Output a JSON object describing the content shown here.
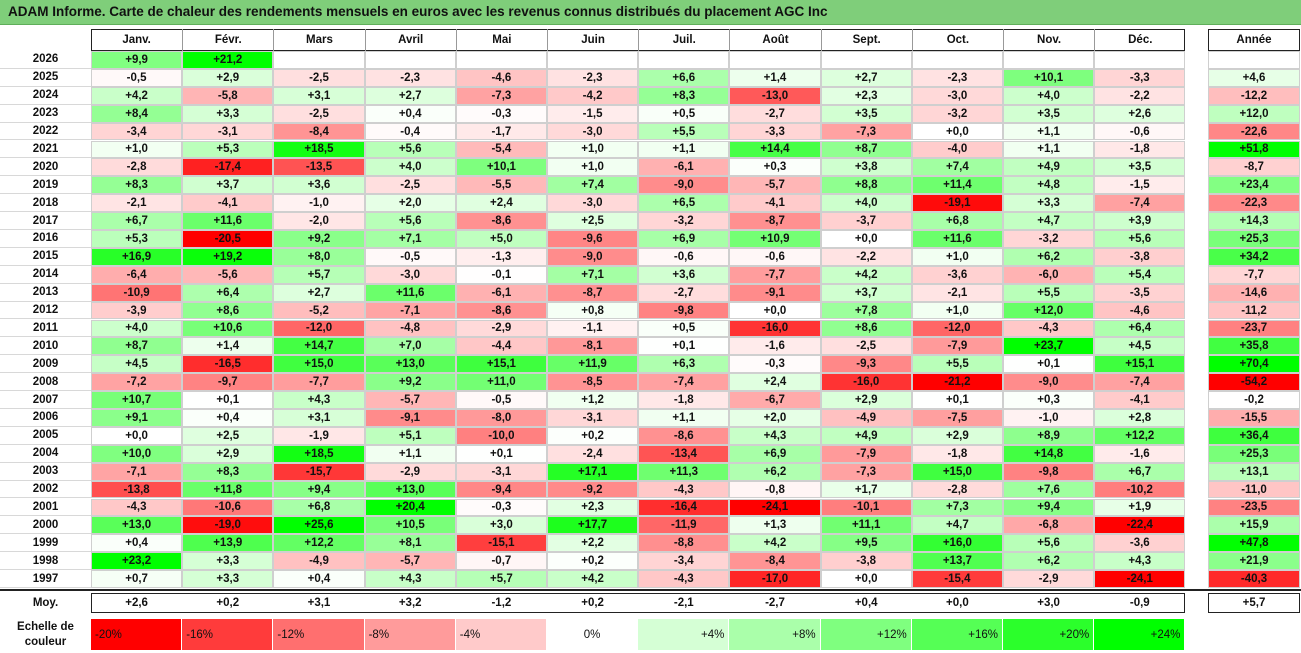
{
  "title": "ADAM Informe. Carte de chaleur des rendements mensuels en euros avec les revenus connus distribués du placement AGC Inc",
  "chart_data": {
    "type": "heatmap",
    "title": "ADAM Informe. Carte de chaleur des rendements mensuels en euros avec les revenus connus distribués du placement AGC Inc",
    "columns": [
      "Janv.",
      "Févr.",
      "Mars",
      "Avril",
      "Mai",
      "Juin",
      "Juil.",
      "Août",
      "Sept.",
      "Oct.",
      "Nov.",
      "Déc."
    ],
    "year_column_label": "Année",
    "rows": [
      {
        "year": "2026",
        "months": [
          "+9,9",
          "+21,2",
          "",
          "",
          "",
          "",
          "",
          "",
          "",
          "",
          "",
          ""
        ],
        "annual": ""
      },
      {
        "year": "2025",
        "months": [
          "-0,5",
          "+2,9",
          "-2,5",
          "-2,3",
          "-4,6",
          "-2,3",
          "+6,6",
          "+1,4",
          "+2,7",
          "-2,3",
          "+10,1",
          "-3,3"
        ],
        "annual": "+4,6"
      },
      {
        "year": "2024",
        "months": [
          "+4,2",
          "-5,8",
          "+3,1",
          "+2,7",
          "-7,3",
          "-4,2",
          "+8,3",
          "-13,0",
          "+2,3",
          "-3,0",
          "+4,0",
          "-2,2"
        ],
        "annual": "-12,2"
      },
      {
        "year": "2023",
        "months": [
          "+8,4",
          "+3,3",
          "-2,5",
          "+0,4",
          "-0,3",
          "-1,5",
          "+0,5",
          "-2,7",
          "+3,5",
          "-3,2",
          "+3,5",
          "+2,6"
        ],
        "annual": "+12,0"
      },
      {
        "year": "2022",
        "months": [
          "-3,4",
          "-3,1",
          "-8,4",
          "-0,4",
          "-1,7",
          "-3,0",
          "+5,5",
          "-3,3",
          "-7,3",
          "+0,0",
          "+1,1",
          "-0,6"
        ],
        "annual": "-22,6"
      },
      {
        "year": "2021",
        "months": [
          "+1,0",
          "+5,3",
          "+18,5",
          "+5,6",
          "-5,4",
          "+1,0",
          "+1,1",
          "+14,4",
          "+8,7",
          "-4,0",
          "+1,1",
          "-1,8"
        ],
        "annual": "+51,8"
      },
      {
        "year": "2020",
        "months": [
          "-2,8",
          "-17,4",
          "-13,5",
          "+4,0",
          "+10,1",
          "+1,0",
          "-6,1",
          "+0,3",
          "+3,8",
          "+7,4",
          "+4,9",
          "+3,5"
        ],
        "annual": "-8,7"
      },
      {
        "year": "2019",
        "months": [
          "+8,3",
          "+3,7",
          "+3,6",
          "-2,5",
          "-5,5",
          "+7,4",
          "-9,0",
          "-5,7",
          "+8,8",
          "+11,4",
          "+4,8",
          "-1,5"
        ],
        "annual": "+23,4"
      },
      {
        "year": "2018",
        "months": [
          "-2,1",
          "-4,1",
          "-1,0",
          "+2,0",
          "+2,4",
          "-3,0",
          "+6,5",
          "-4,1",
          "+4,0",
          "-19,1",
          "+3,3",
          "-7,4"
        ],
        "annual": "-22,3"
      },
      {
        "year": "2017",
        "months": [
          "+6,7",
          "+11,6",
          "-2,0",
          "+5,6",
          "-8,6",
          "+2,5",
          "-3,2",
          "-8,7",
          "-3,7",
          "+6,8",
          "+4,7",
          "+3,9"
        ],
        "annual": "+14,3"
      },
      {
        "year": "2016",
        "months": [
          "+5,3",
          "-20,5",
          "+9,2",
          "+7,1",
          "+5,0",
          "-9,6",
          "+6,9",
          "+10,9",
          "+0,0",
          "+11,6",
          "-3,2",
          "+5,6"
        ],
        "annual": "+25,3"
      },
      {
        "year": "2015",
        "months": [
          "+16,9",
          "+19,2",
          "+8,0",
          "-0,5",
          "-1,3",
          "-9,0",
          "-0,6",
          "-0,6",
          "-2,2",
          "+1,0",
          "+6,2",
          "-3,8"
        ],
        "annual": "+34,2"
      },
      {
        "year": "2014",
        "months": [
          "-6,4",
          "-5,6",
          "+5,7",
          "-3,0",
          "-0,1",
          "+7,1",
          "+3,6",
          "-7,7",
          "+4,2",
          "-3,6",
          "-6,0",
          "+5,4"
        ],
        "annual": "-7,7"
      },
      {
        "year": "2013",
        "months": [
          "-10,9",
          "+6,4",
          "+2,7",
          "+11,6",
          "-6,1",
          "-8,7",
          "-2,7",
          "-9,1",
          "+3,7",
          "-2,1",
          "+5,5",
          "-3,5"
        ],
        "annual": "-14,6"
      },
      {
        "year": "2012",
        "months": [
          "-3,9",
          "+8,6",
          "-5,2",
          "-7,1",
          "-8,6",
          "+0,8",
          "-9,8",
          "+0,0",
          "+7,8",
          "+1,0",
          "+12,0",
          "-4,6"
        ],
        "annual": "-11,2"
      },
      {
        "year": "2011",
        "months": [
          "+4,0",
          "+10,6",
          "-12,0",
          "-4,8",
          "-2,9",
          "-1,1",
          "+0,5",
          "-16,0",
          "+8,6",
          "-12,0",
          "-4,3",
          "+6,4"
        ],
        "annual": "-23,7"
      },
      {
        "year": "2010",
        "months": [
          "+8,7",
          "+1,4",
          "+14,7",
          "+7,0",
          "-4,4",
          "-8,1",
          "+0,1",
          "-1,6",
          "-2,5",
          "-7,9",
          "+23,7",
          "+4,5"
        ],
        "annual": "+35,8"
      },
      {
        "year": "2009",
        "months": [
          "+4,5",
          "-16,5",
          "+15,0",
          "+13,0",
          "+15,1",
          "+11,9",
          "+6,3",
          "-0,3",
          "-9,3",
          "+5,5",
          "+0,1",
          "+15,1"
        ],
        "annual": "+70,4"
      },
      {
        "year": "2008",
        "months": [
          "-7,2",
          "-9,7",
          "-7,7",
          "+9,2",
          "+11,0",
          "-8,5",
          "-7,4",
          "+2,4",
          "-16,0",
          "-21,2",
          "-9,0",
          "-7,4"
        ],
        "annual": "-54,2"
      },
      {
        "year": "2007",
        "months": [
          "+10,7",
          "+0,1",
          "+4,3",
          "-5,7",
          "-0,5",
          "+1,2",
          "-1,8",
          "-6,7",
          "+2,9",
          "+0,1",
          "+0,3",
          "-4,1"
        ],
        "annual": "-0,2"
      },
      {
        "year": "2006",
        "months": [
          "+9,1",
          "+0,4",
          "+3,1",
          "-9,1",
          "-8,0",
          "-3,1",
          "+1,1",
          "+2,0",
          "-4,9",
          "-7,5",
          "-1,0",
          "+2,8"
        ],
        "annual": "-15,5"
      },
      {
        "year": "2005",
        "months": [
          "+0,0",
          "+2,5",
          "-1,9",
          "+5,1",
          "-10,0",
          "+0,2",
          "-8,6",
          "+4,3",
          "+4,9",
          "+2,9",
          "+8,9",
          "+12,2"
        ],
        "annual": "+36,4"
      },
      {
        "year": "2004",
        "months": [
          "+10,0",
          "+2,9",
          "+18,5",
          "+1,1",
          "+0,1",
          "-2,4",
          "-13,4",
          "+6,9",
          "-7,9",
          "-1,8",
          "+14,8",
          "-1,6"
        ],
        "annual": "+25,3"
      },
      {
        "year": "2003",
        "months": [
          "-7,1",
          "+8,3",
          "-15,7",
          "-2,9",
          "-3,1",
          "+17,1",
          "+11,3",
          "+6,2",
          "-7,3",
          "+15,0",
          "-9,8",
          "+6,7"
        ],
        "annual": "+13,1"
      },
      {
        "year": "2002",
        "months": [
          "-13,8",
          "+11,8",
          "+9,4",
          "+13,0",
          "-9,4",
          "-9,2",
          "-4,3",
          "-0,8",
          "+1,7",
          "-2,8",
          "+7,6",
          "-10,2"
        ],
        "annual": "-11,0"
      },
      {
        "year": "2001",
        "months": [
          "-4,3",
          "-10,6",
          "+6,8",
          "+20,4",
          "-0,3",
          "+2,3",
          "-16,4",
          "-24,1",
          "-10,1",
          "+7,3",
          "+9,4",
          "+1,9"
        ],
        "annual": "-23,5"
      },
      {
        "year": "2000",
        "months": [
          "+13,0",
          "-19,0",
          "+25,6",
          "+10,5",
          "+3,0",
          "+17,7",
          "-11,9",
          "+1,3",
          "+11,1",
          "+4,7",
          "-6,8",
          "-22,4"
        ],
        "annual": "+15,9"
      },
      {
        "year": "1999",
        "months": [
          "+0,4",
          "+13,9",
          "+12,2",
          "+8,1",
          "-15,1",
          "+2,2",
          "-8,8",
          "+4,2",
          "+9,5",
          "+16,0",
          "+5,6",
          "-3,6"
        ],
        "annual": "+47,8"
      },
      {
        "year": "1998",
        "months": [
          "+23,2",
          "+3,3",
          "-4,9",
          "-5,7",
          "-0,7",
          "+0,2",
          "-3,4",
          "-8,4",
          "-3,8",
          "+13,7",
          "+6,2",
          "+4,3"
        ],
        "annual": "+21,9"
      },
      {
        "year": "1997",
        "months": [
          "+0,7",
          "+3,3",
          "+0,4",
          "+4,3",
          "+5,7",
          "+4,2",
          "-4,3",
          "-17,0",
          "+0,0",
          "-15,4",
          "-2,9",
          "-24,1"
        ],
        "annual": "-40,3"
      }
    ],
    "average_row": {
      "label": "Moy.",
      "months": [
        "+2,6",
        "+0,2",
        "+3,1",
        "+3,2",
        "-1,2",
        "+0,2",
        "-2,1",
        "-2,7",
        "+0,4",
        "+0,0",
        "+3,0",
        "-0,9"
      ],
      "annual": "+5,7"
    },
    "color_scale": {
      "label": "Echelle de couleur",
      "stops": [
        {
          "label": "-20%",
          "value": -20,
          "color": "#ff0000"
        },
        {
          "label": "-16%",
          "value": -16,
          "color": "#ff3b3b"
        },
        {
          "label": "-12%",
          "value": -12,
          "color": "#ff6f6f"
        },
        {
          "label": "-8%",
          "value": -8,
          "color": "#ff9b9b"
        },
        {
          "label": "-4%",
          "value": -4,
          "color": "#ffcaca"
        },
        {
          "label": "0%",
          "value": 0,
          "color": "#ffffff"
        },
        {
          "label": "+4%",
          "value": 4,
          "color": "#d5ffd5"
        },
        {
          "label": "+8%",
          "value": 8,
          "color": "#aaffaa"
        },
        {
          "label": "+12%",
          "value": 12,
          "color": "#7fff7f"
        },
        {
          "label": "+16%",
          "value": 16,
          "color": "#55ff55"
        },
        {
          "label": "+20%",
          "value": 20,
          "color": "#2bff2b"
        },
        {
          "label": "+24%",
          "value": 24,
          "color": "#00ff00"
        }
      ]
    },
    "annual_scale": {
      "min": -54,
      "max": 70
    }
  }
}
